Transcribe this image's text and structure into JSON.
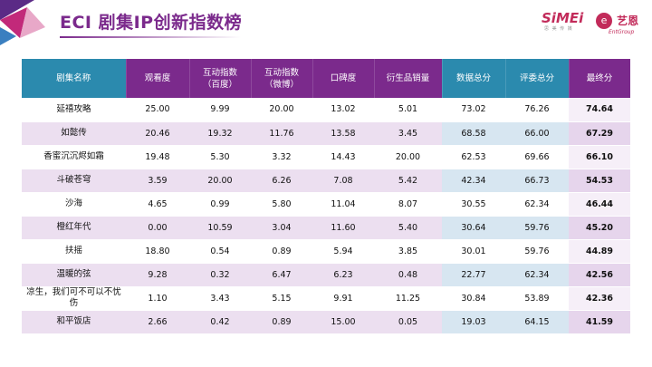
{
  "header": {
    "title": "ECI 剧集IP创新指数榜",
    "logo_simei": "SiMEi",
    "logo_simei_sub": "思 美 传 媒",
    "logo_yien": "艺恩",
    "logo_yien_sub": "EntGroup"
  },
  "colors": {
    "header_blue": "#2b8aae",
    "header_purple": "#7b2a8c",
    "row_tint": "#ecdff0",
    "sum_tint": "#d7e6f1"
  },
  "table": {
    "columns": [
      {
        "label": "剧集名称",
        "sub": ""
      },
      {
        "label": "观看度",
        "sub": ""
      },
      {
        "label": "互动指数",
        "sub": "（百度）"
      },
      {
        "label": "互动指数",
        "sub": "（微博）"
      },
      {
        "label": "口碑度",
        "sub": ""
      },
      {
        "label": "衍生品销量",
        "sub": ""
      },
      {
        "label": "数据总分",
        "sub": ""
      },
      {
        "label": "评委总分",
        "sub": ""
      },
      {
        "label": "最终分",
        "sub": ""
      }
    ],
    "rows": [
      {
        "name": "延禧攻略",
        "views": "25.00",
        "baidu": "9.99",
        "weibo": "20.00",
        "reputation": "13.02",
        "merch": "5.01",
        "data_total": "73.02",
        "judge_total": "76.26",
        "final": "74.64"
      },
      {
        "name": "如懿传",
        "views": "20.46",
        "baidu": "19.32",
        "weibo": "11.76",
        "reputation": "13.58",
        "merch": "3.45",
        "data_total": "68.58",
        "judge_total": "66.00",
        "final": "67.29"
      },
      {
        "name": "香蜜沉沉烬如霜",
        "views": "19.48",
        "baidu": "5.30",
        "weibo": "3.32",
        "reputation": "14.43",
        "merch": "20.00",
        "data_total": "62.53",
        "judge_total": "69.66",
        "final": "66.10"
      },
      {
        "name": "斗破苍穹",
        "views": "3.59",
        "baidu": "20.00",
        "weibo": "6.26",
        "reputation": "7.08",
        "merch": "5.42",
        "data_total": "42.34",
        "judge_total": "66.73",
        "final": "54.53"
      },
      {
        "name": "沙海",
        "views": "4.65",
        "baidu": "0.99",
        "weibo": "5.80",
        "reputation": "11.04",
        "merch": "8.07",
        "data_total": "30.55",
        "judge_total": "62.34",
        "final": "46.44"
      },
      {
        "name": "橙红年代",
        "views": "0.00",
        "baidu": "10.59",
        "weibo": "3.04",
        "reputation": "11.60",
        "merch": "5.40",
        "data_total": "30.64",
        "judge_total": "59.76",
        "final": "45.20"
      },
      {
        "name": "扶摇",
        "views": "18.80",
        "baidu": "0.54",
        "weibo": "0.89",
        "reputation": "5.94",
        "merch": "3.85",
        "data_total": "30.01",
        "judge_total": "59.76",
        "final": "44.89"
      },
      {
        "name": "温暖的弦",
        "views": "9.28",
        "baidu": "0.32",
        "weibo": "6.47",
        "reputation": "6.23",
        "merch": "0.48",
        "data_total": "22.77",
        "judge_total": "62.34",
        "final": "42.56"
      },
      {
        "name": "凉生，我们可不可以不忧伤",
        "views": "1.10",
        "baidu": "3.43",
        "weibo": "5.15",
        "reputation": "9.91",
        "merch": "11.25",
        "data_total": "30.84",
        "judge_total": "53.89",
        "final": "42.36"
      },
      {
        "name": "和平饭店",
        "views": "2.66",
        "baidu": "0.42",
        "weibo": "0.89",
        "reputation": "15.00",
        "merch": "0.05",
        "data_total": "19.03",
        "judge_total": "64.15",
        "final": "41.59"
      }
    ]
  }
}
